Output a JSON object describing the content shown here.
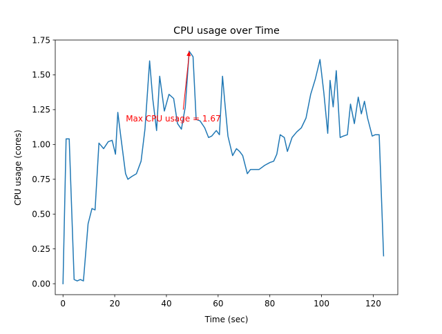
{
  "chart_data": {
    "type": "line",
    "title": "CPU usage over Time",
    "xlabel": "Time (sec)",
    "ylabel": "CPU usage (cores)",
    "xlim": [
      -3,
      129.5
    ],
    "ylim": [
      -0.0786,
      1.75
    ],
    "x_ticks": [
      0,
      20,
      40,
      60,
      80,
      100,
      120
    ],
    "y_ticks": [
      0.0,
      0.25,
      0.5,
      0.75,
      1.0,
      1.25,
      1.5,
      1.75
    ],
    "x_tick_labels": [
      "0",
      "20",
      "40",
      "60",
      "80",
      "100",
      "120"
    ],
    "y_tick_labels": [
      "0.00",
      "0.25",
      "0.50",
      "0.75",
      "1.00",
      "1.25",
      "1.50",
      "1.75"
    ],
    "grid": false,
    "legend": "none",
    "series": [
      {
        "color": "#1f77b4",
        "x": [
          0,
          1.2,
          2.4,
          4.3,
          5.5,
          6.7,
          7.9,
          9.7,
          11.2,
          12.4,
          13.9,
          15.7,
          17.5,
          19,
          20.3,
          21.2,
          22.4,
          24.2,
          25.1,
          26.6,
          28.4,
          30.2,
          31.7,
          33.5,
          34.7,
          36.2,
          37.4,
          39.2,
          41,
          42.8,
          44.3,
          45.8,
          47.3,
          48.8,
          50.3,
          51.5,
          53,
          54.8,
          56.3,
          57.5,
          59.3,
          60.5,
          61.7,
          62.6,
          63.8,
          65.6,
          67.1,
          68.3,
          69.5,
          71.3,
          72.5,
          73.7,
          75.8,
          78,
          80,
          81.5,
          82.7,
          84,
          85.6,
          86.8,
          88.6,
          90.4,
          92.2,
          94,
          95.8,
          97.6,
          99.4,
          100.9,
          102.4,
          103.3,
          104.5,
          105.7,
          107.2,
          108.4,
          110,
          111.2,
          112.7,
          114.2,
          115.4,
          116.6,
          117.8,
          119.6,
          120.8,
          122.3,
          124
        ],
        "y": [
          0,
          1.04,
          1.04,
          0.03,
          0.02,
          0.03,
          0.02,
          0.43,
          0.54,
          0.53,
          1.01,
          0.97,
          1.02,
          1.03,
          0.93,
          1.23,
          1.05,
          0.79,
          0.75,
          0.77,
          0.79,
          0.88,
          1.11,
          1.6,
          1.33,
          1.1,
          1.49,
          1.24,
          1.36,
          1.33,
          1.15,
          1.11,
          1.27,
          1.67,
          1.63,
          1.18,
          1.17,
          1.12,
          1.05,
          1.06,
          1.1,
          1.07,
          1.49,
          1.3,
          1.06,
          0.92,
          0.97,
          0.95,
          0.92,
          0.79,
          0.82,
          0.82,
          0.82,
          0.85,
          0.87,
          0.88,
          0.93,
          1.07,
          1.05,
          0.95,
          1.05,
          1.09,
          1.12,
          1.19,
          1.36,
          1.47,
          1.61,
          1.37,
          1.08,
          1.46,
          1.27,
          1.53,
          1.05,
          1.06,
          1.07,
          1.29,
          1.15,
          1.34,
          1.22,
          1.31,
          1.19,
          1.06,
          1.07,
          1.07,
          0.2
        ]
      }
    ],
    "annotation": {
      "text": "Max CPU usage = 1.67",
      "color": "#ff0000",
      "text_x": 24.3,
      "text_y": 1.165,
      "arrow_from_x": 46.5,
      "arrow_from_y": 1.25,
      "arrow_to_x": 48.8,
      "arrow_to_y": 1.67
    }
  }
}
